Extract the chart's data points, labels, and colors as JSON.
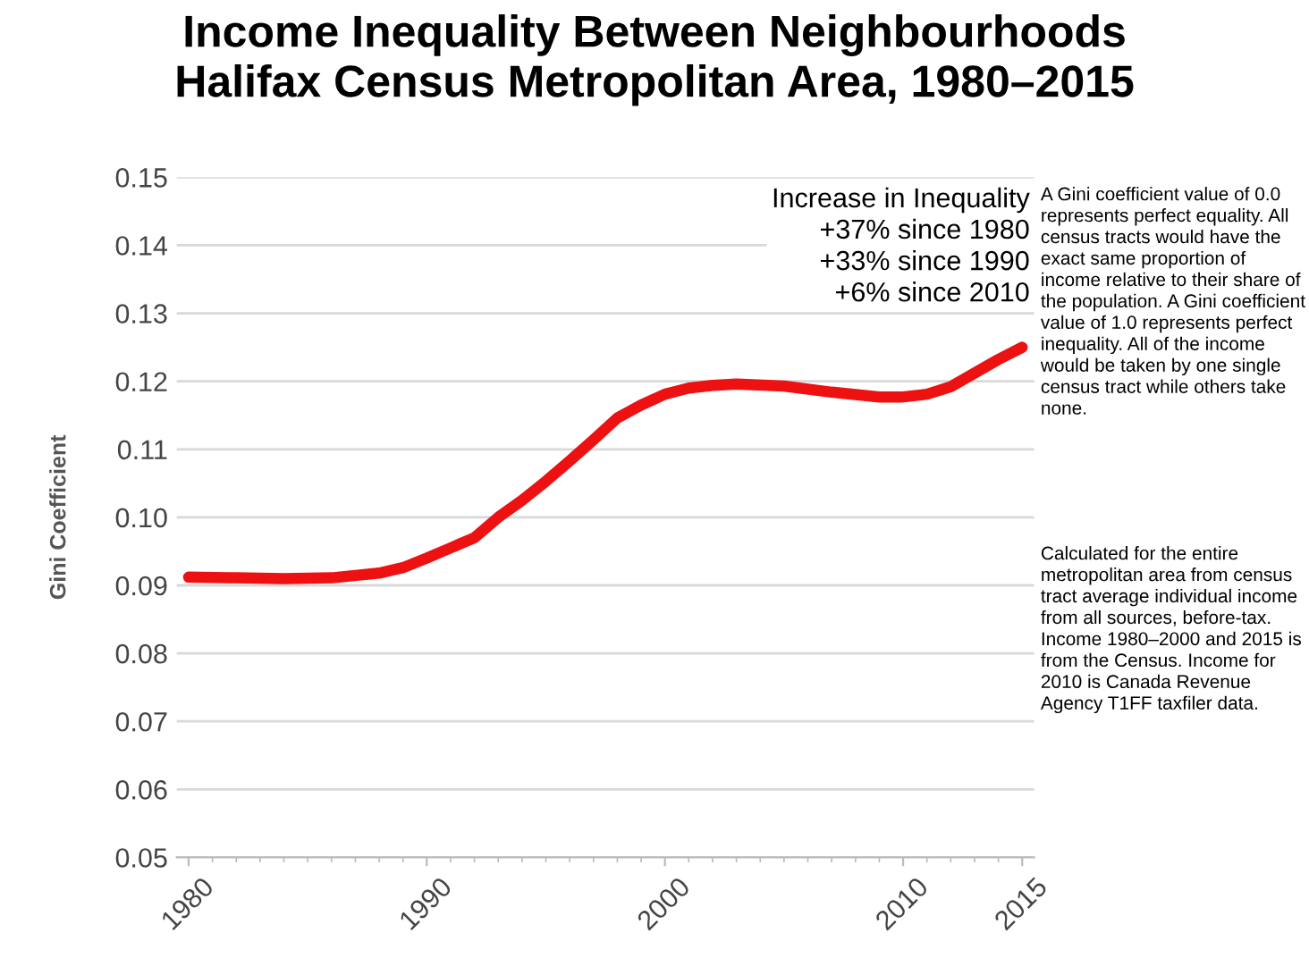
{
  "chart_data": {
    "type": "line",
    "title": "Income Inequality Between Neighbourhoods\nHalifax Census Metropolitan Area, 1980–2015",
    "ylabel": "Gini Coefficient",
    "x": [
      1980,
      1982,
      1984,
      1986,
      1988,
      1989,
      1990,
      1991,
      1992,
      1993,
      1994,
      1995,
      1996,
      1997,
      1998,
      1999,
      2000,
      2001,
      2002,
      2003,
      2005,
      2007,
      2009,
      2010,
      2011,
      2012,
      2013,
      2014,
      2015
    ],
    "series": [
      {
        "color": "#ee1111",
        "values": [
          0.0912,
          0.0911,
          0.091,
          0.0911,
          0.0918,
          0.0926,
          0.094,
          0.0955,
          0.097,
          0.1,
          0.1025,
          0.1053,
          0.1083,
          0.1114,
          0.1146,
          0.1165,
          0.1181,
          0.119,
          0.1194,
          0.1196,
          0.1193,
          0.1184,
          0.1177,
          0.1177,
          0.1181,
          0.1192,
          0.1212,
          0.1232,
          0.125
        ]
      }
    ],
    "xlim": [
      1979.5,
      2015.5
    ],
    "xticks": [
      1980,
      1990,
      2000,
      2010,
      2015
    ],
    "ylim": [
      0.05,
      0.15
    ],
    "yticks": [
      0.05,
      0.06,
      0.07,
      0.08,
      0.09,
      {
        "value": 0.1,
        "label": "0.10"
      },
      0.11,
      0.12,
      0.13,
      0.14,
      0.15
    ],
    "grid": "y",
    "legend": false,
    "marker": "none",
    "line_style": "solid",
    "annotations": [
      "Increase in Inequality\n+37% since 1980\n+33% since 1990\n+6% since 2010",
      "A Gini coefficient value of 0.0 represents perfect equality. All census tracts would have the exact same proportion of income relative to their share of the population. A Gini coefficient value of 1.0 represents perfect inequality. All of the income would be taken by one single census tract while others take none.",
      "Calculated for the entire metropolitan area from census tract average individual income from all sources, before-tax. Income 1980–2000 and 2015 is from the Census. Income for 2010 is Canada Revenue Agency T1FF taxfiler data."
    ]
  }
}
